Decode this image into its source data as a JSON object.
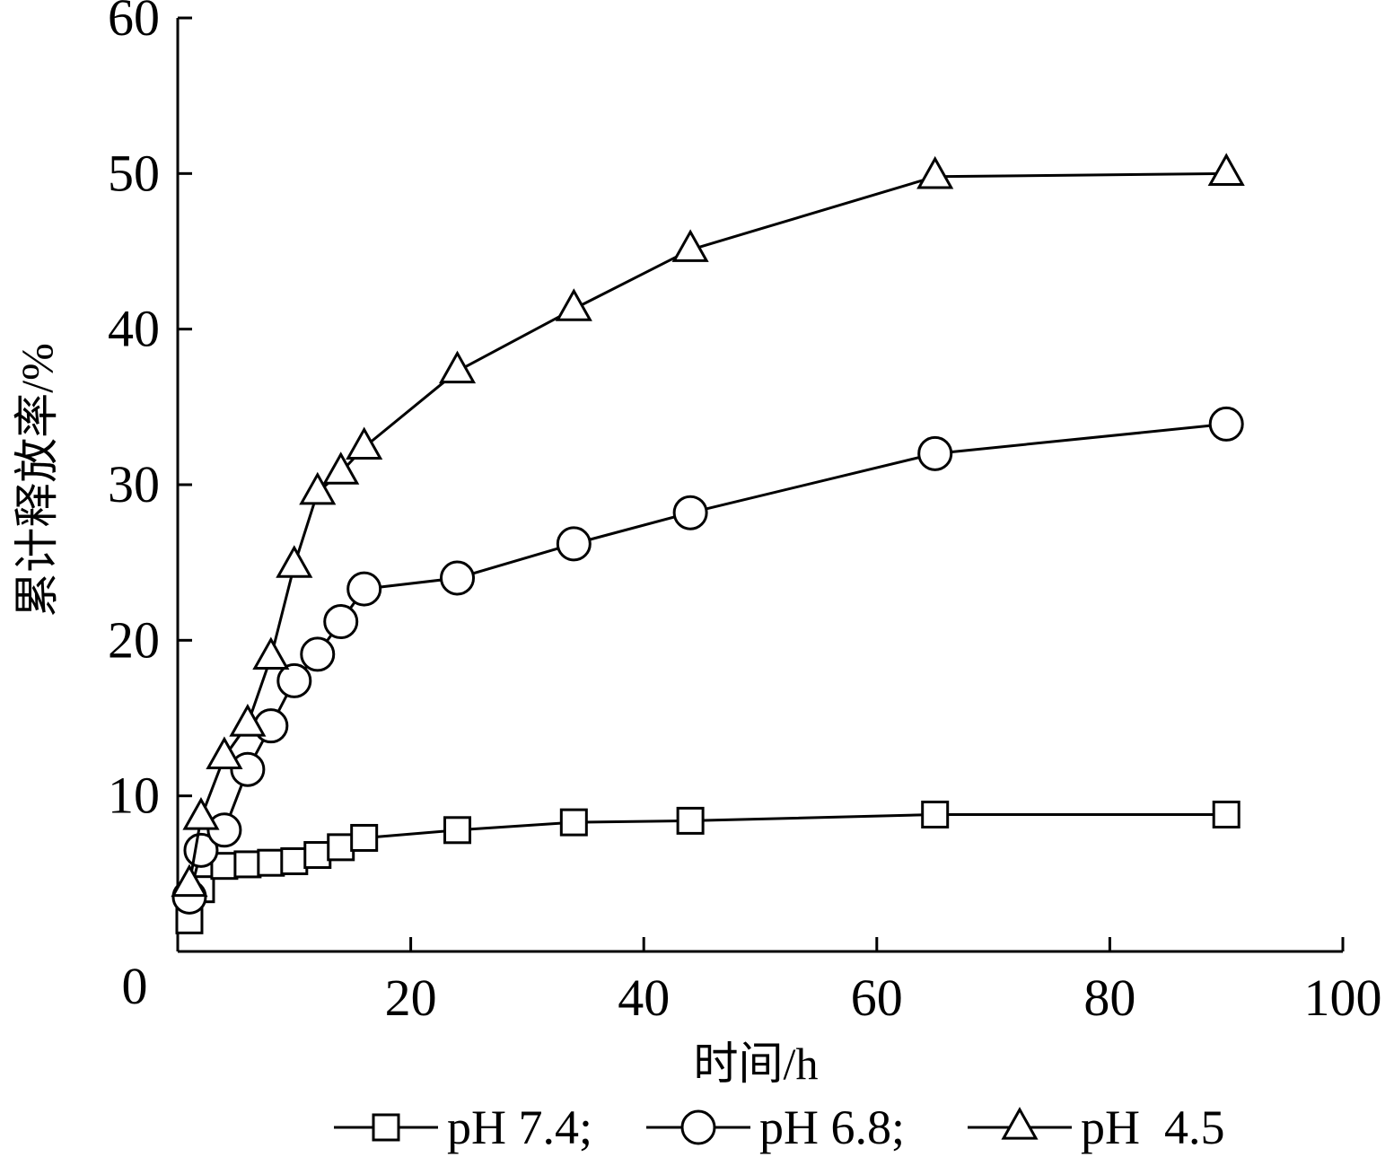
{
  "chart_data": {
    "type": "line",
    "title": "",
    "xlabel": "时间/h",
    "ylabel": "累计释放率/%",
    "xlim": [
      0,
      100
    ],
    "ylim": [
      0,
      60
    ],
    "x_ticks": [
      0,
      20,
      40,
      60,
      80,
      100
    ],
    "y_ticks": [
      10,
      20,
      30,
      40,
      50,
      60
    ],
    "origin_label": "0",
    "grid": false,
    "legend_position": "bottom",
    "series": [
      {
        "name": "pH 7.4;",
        "marker": "square",
        "x": [
          1,
          2,
          4,
          6,
          8,
          10,
          12,
          14,
          16,
          24,
          34,
          44,
          65,
          90
        ],
        "y": [
          2.0,
          4.0,
          5.5,
          5.6,
          5.7,
          5.8,
          6.2,
          6.7,
          7.3,
          7.8,
          8.3,
          8.4,
          8.8,
          8.8
        ]
      },
      {
        "name": "pH 6.8;",
        "marker": "circle",
        "x": [
          1,
          2,
          4,
          6,
          8,
          10,
          12,
          14,
          16,
          24,
          34,
          44,
          65,
          90
        ],
        "y": [
          3.5,
          6.5,
          7.8,
          11.7,
          14.5,
          17.4,
          19.1,
          21.2,
          23.3,
          24.0,
          26.2,
          28.2,
          32.0,
          33.9
        ]
      },
      {
        "name": "pH  4.5",
        "marker": "triangle",
        "x": [
          1,
          2,
          4,
          6,
          8,
          10,
          12,
          14,
          16,
          24,
          34,
          44,
          65,
          90
        ],
        "y": [
          4.3,
          8.6,
          12.5,
          14.6,
          18.9,
          24.8,
          29.5,
          30.8,
          32.4,
          37.3,
          41.3,
          45.1,
          49.8,
          50.0
        ]
      }
    ]
  }
}
